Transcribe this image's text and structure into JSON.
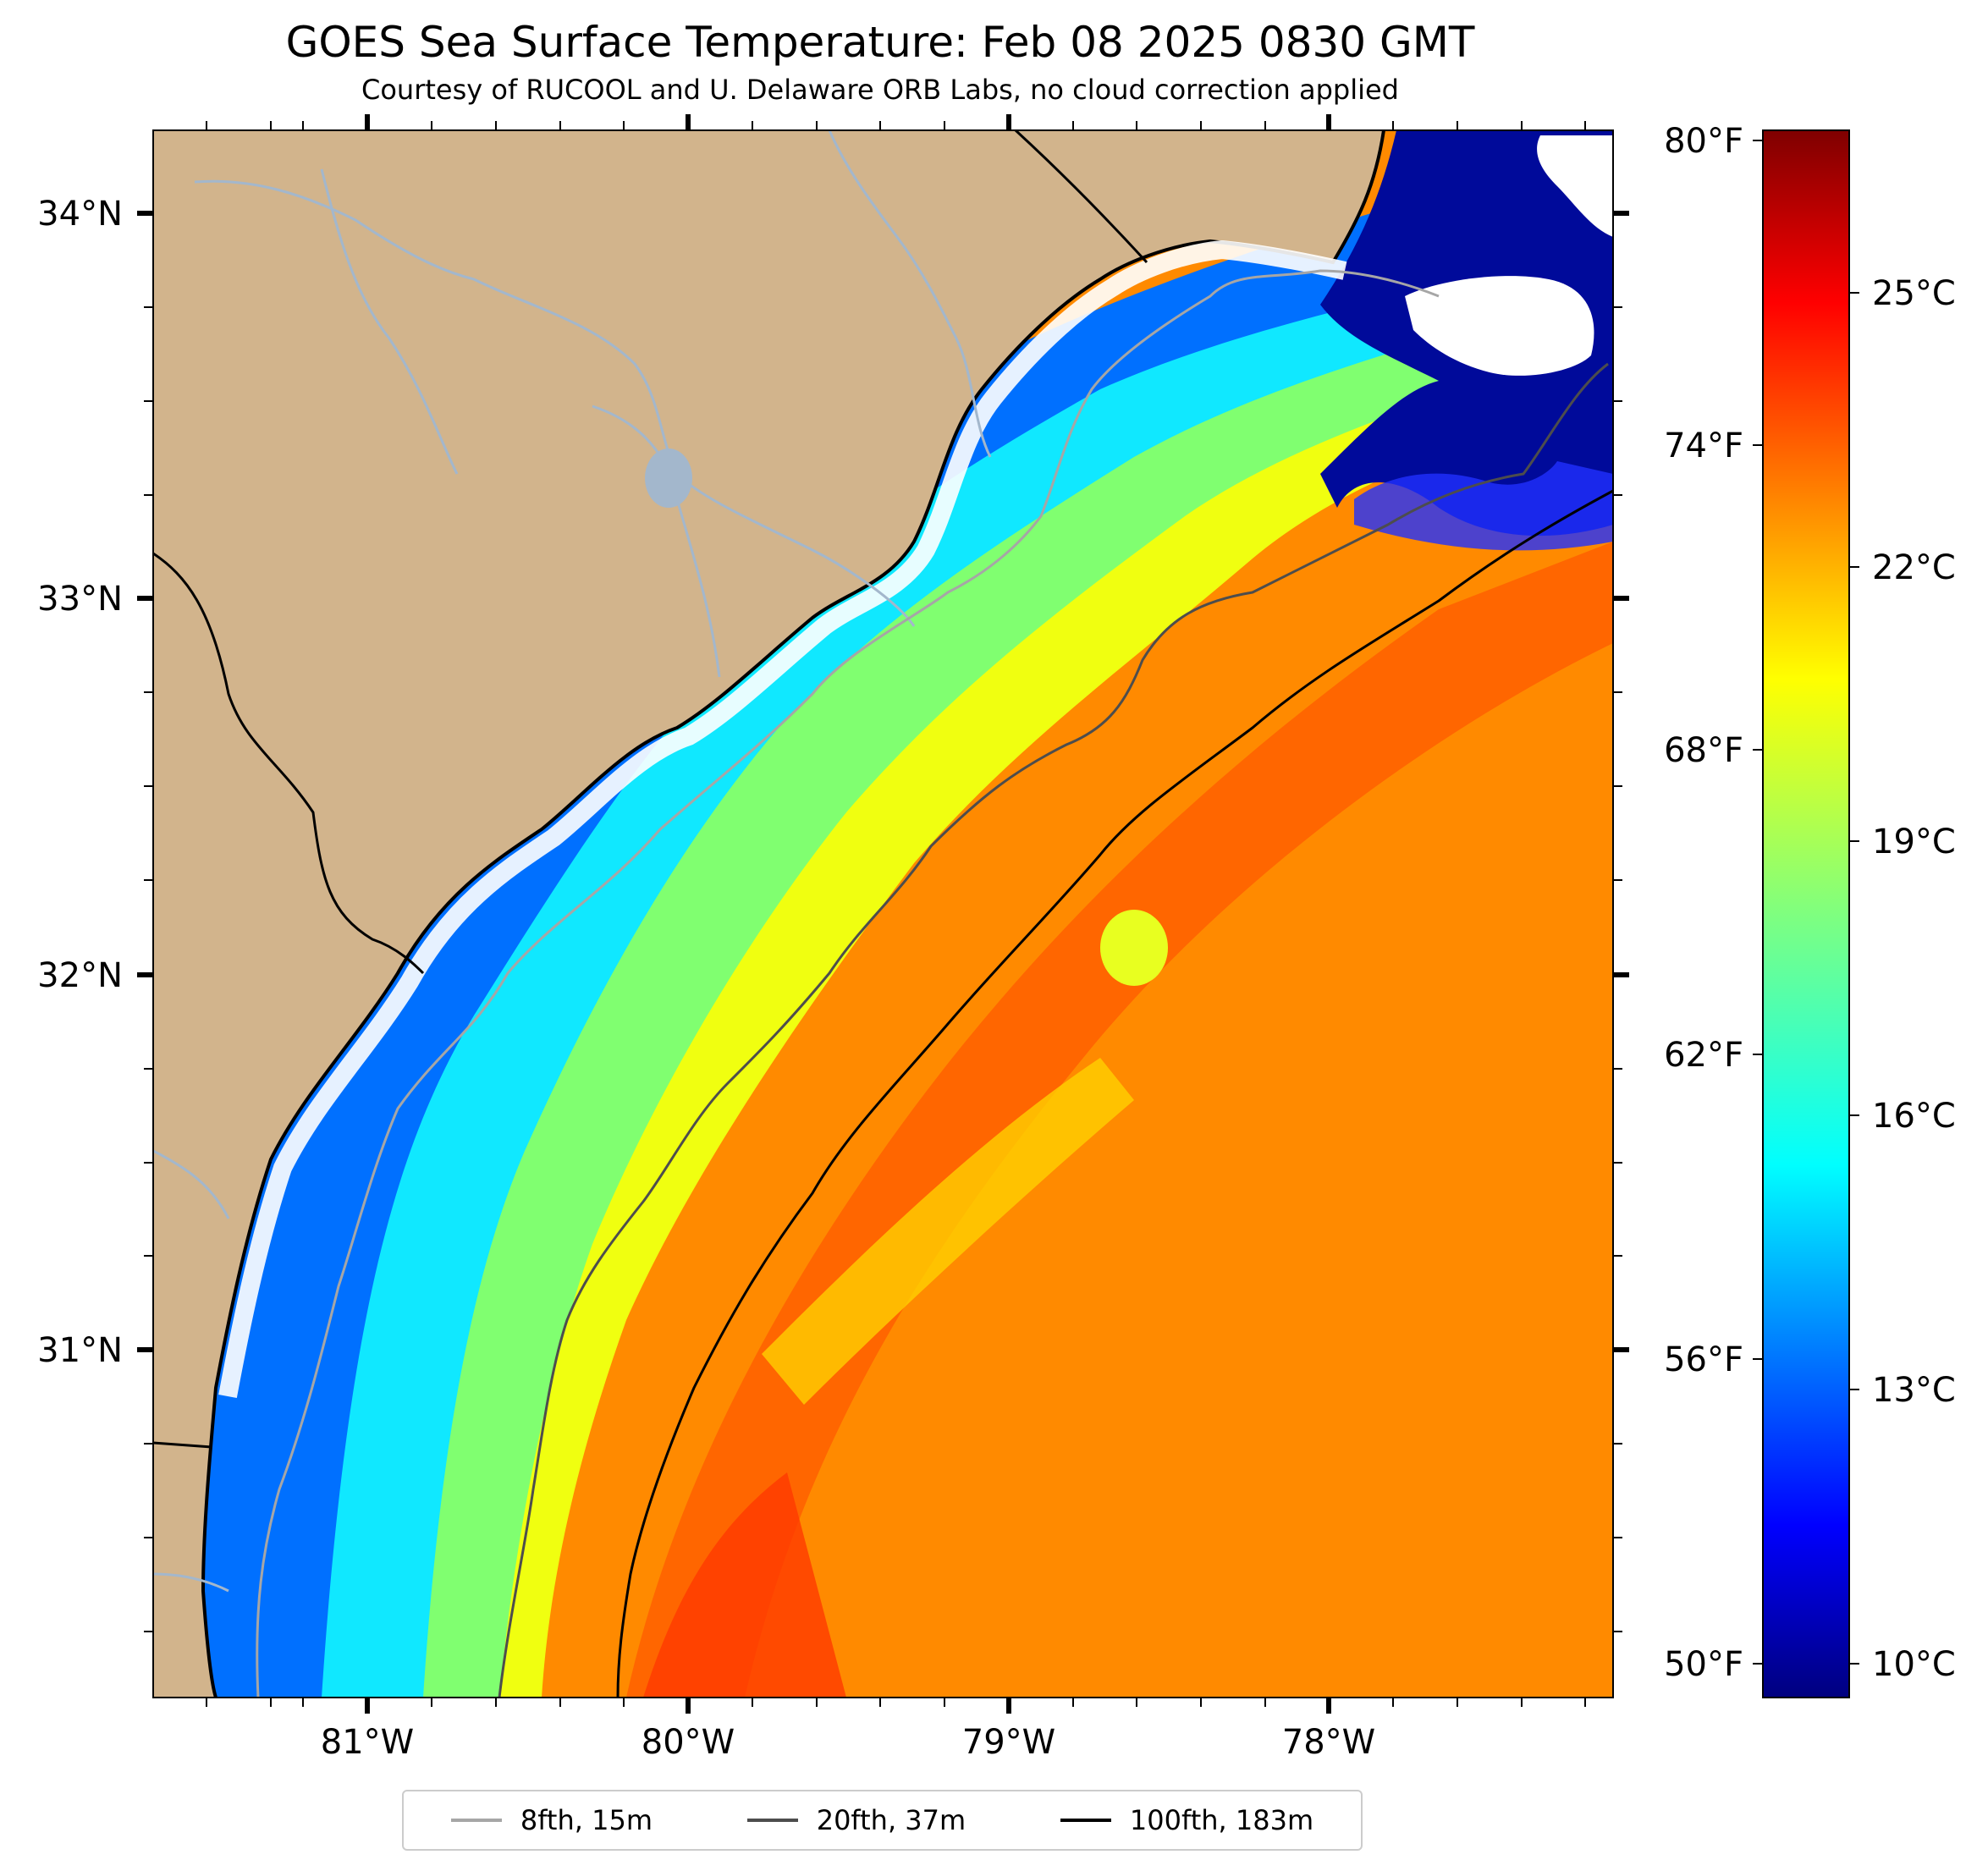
{
  "title": "GOES Sea Surface Temperature: Feb 08 2025 0830 GMT",
  "subtitle": "Courtesy of RUCOOL and U. Delaware ORB Labs, no cloud correction applied",
  "axes": {
    "lat_labels": [
      "34°N",
      "33°N",
      "32°N",
      "31°N"
    ],
    "lon_labels": [
      "81°W",
      "80°W",
      "79°W",
      "78°W"
    ]
  },
  "colorbar": {
    "fahrenheit_labels": [
      "80°F",
      "74°F",
      "68°F",
      "62°F",
      "56°F",
      "50°F"
    ],
    "celsius_labels": [
      "25°C",
      "22°C",
      "19°C",
      "16°C",
      "13°C",
      "10°C"
    ],
    "range_c": [
      9.5,
      27.0
    ],
    "colormap": "jet"
  },
  "legend": [
    {
      "label": "8fth, 15m",
      "color": "#a6a6a6"
    },
    {
      "label": "20fth, 37m",
      "color": "#4d4d4d"
    },
    {
      "label": "100fth, 183m",
      "color": "#000000"
    }
  ],
  "colors": {
    "land": "#d2b48c",
    "river": "#a3b7cc",
    "cloud": "#ffffff"
  }
}
